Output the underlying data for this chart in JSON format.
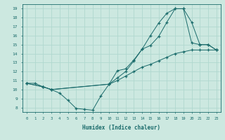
{
  "xlabel": "Humidex (Indice chaleur)",
  "bg_color": "#cce8e0",
  "line_color": "#1a6b6b",
  "grid_color": "#b0d8cf",
  "xlim": [
    -0.5,
    23.5
  ],
  "ylim": [
    7.5,
    19.5
  ],
  "xticks": [
    0,
    1,
    2,
    3,
    4,
    5,
    6,
    7,
    8,
    9,
    10,
    11,
    12,
    13,
    14,
    15,
    16,
    17,
    18,
    19,
    20,
    21,
    22,
    23
  ],
  "yticks": [
    8,
    9,
    10,
    11,
    12,
    13,
    14,
    15,
    16,
    17,
    18,
    19
  ],
  "line1": {
    "x": [
      0,
      1,
      2,
      3,
      4,
      5,
      6,
      7,
      8,
      9,
      10,
      11,
      12,
      13,
      14,
      15,
      16,
      17,
      18,
      19,
      20,
      21,
      22,
      23
    ],
    "y": [
      10.7,
      10.7,
      10.3,
      10.0,
      9.6,
      8.8,
      7.9,
      7.8,
      7.7,
      9.3,
      10.6,
      11.0,
      11.5,
      12.0,
      12.5,
      12.8,
      13.2,
      13.6,
      14.0,
      14.2,
      14.4,
      14.4,
      14.4,
      14.4
    ]
  },
  "line2": {
    "x": [
      0,
      2,
      3,
      10,
      11,
      12,
      13,
      14,
      15,
      16,
      17,
      18,
      19,
      20,
      21,
      22,
      23
    ],
    "y": [
      10.7,
      10.3,
      10.0,
      10.6,
      11.3,
      12.0,
      13.2,
      14.5,
      14.9,
      15.9,
      17.5,
      19.0,
      19.0,
      17.5,
      15.0,
      15.0,
      14.4
    ]
  },
  "line3": {
    "x": [
      0,
      2,
      3,
      10,
      11,
      12,
      13,
      14,
      15,
      16,
      17,
      18,
      19,
      20,
      21,
      22,
      23
    ],
    "y": [
      10.7,
      10.3,
      10.0,
      10.6,
      12.1,
      12.3,
      13.3,
      14.5,
      16.0,
      17.4,
      18.5,
      19.0,
      19.0,
      15.2,
      15.0,
      15.0,
      14.4
    ]
  }
}
